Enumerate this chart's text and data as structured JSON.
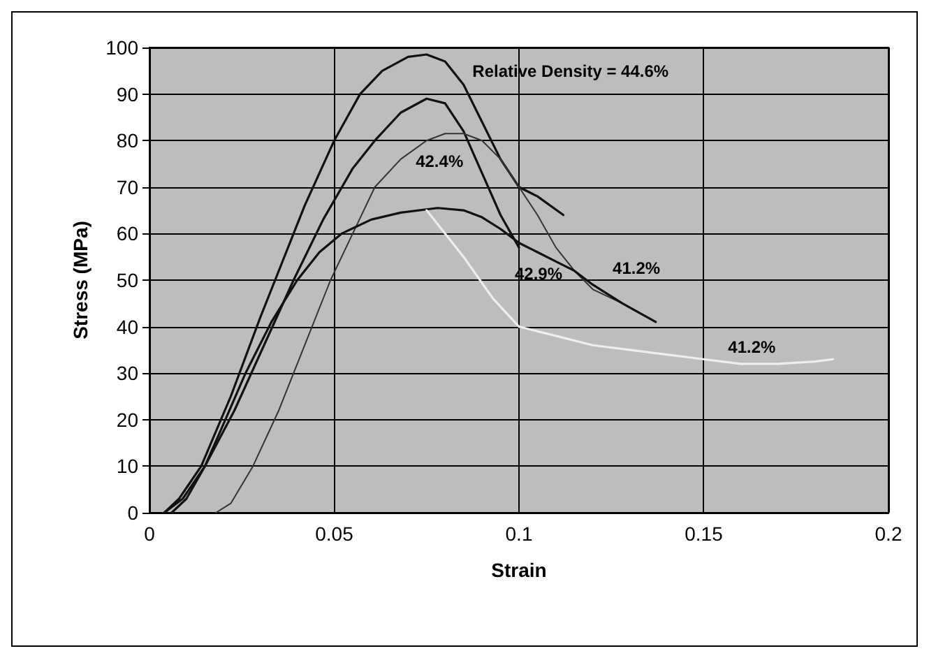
{
  "chart_data": {
    "type": "line",
    "xlabel": "Strain",
    "ylabel": "Stress (MPa)",
    "xlim": [
      0,
      0.2
    ],
    "xticks": [
      0,
      0.05,
      0.1,
      0.15,
      0.2
    ],
    "ylim": [
      0,
      100
    ],
    "yticks": [
      0,
      10,
      20,
      30,
      40,
      50,
      60,
      70,
      80,
      90,
      100
    ],
    "grid": true,
    "marker": "none",
    "line_style": "solid",
    "series": [
      {
        "name": "Relative Density = 44.6%",
        "color": "#111111",
        "x": [
          0.004,
          0.008,
          0.014,
          0.022,
          0.03,
          0.034,
          0.042,
          0.05,
          0.057,
          0.063,
          0.07,
          0.075,
          0.08,
          0.085,
          0.09,
          0.095,
          0.1,
          0.105,
          0.112
        ],
        "values": [
          0,
          3,
          10,
          25,
          42,
          50,
          66,
          80,
          90,
          95,
          98,
          98.5,
          97,
          92,
          84,
          76,
          70,
          68,
          64
        ]
      },
      {
        "name": "42.9%",
        "color": "#111111",
        "x": [
          0.006,
          0.01,
          0.015,
          0.023,
          0.031,
          0.039,
          0.047,
          0.055,
          0.061,
          0.068,
          0.075,
          0.08,
          0.085,
          0.09,
          0.095,
          0.1
        ],
        "values": [
          0,
          3,
          10,
          22,
          36,
          50,
          63,
          74,
          80,
          86,
          89,
          88,
          82,
          73,
          64,
          57
        ]
      },
      {
        "name": "42.4%",
        "color": "#333333",
        "x": [
          0.018,
          0.022,
          0.028,
          0.035,
          0.042,
          0.049,
          0.055,
          0.061,
          0.068,
          0.075,
          0.08,
          0.085,
          0.09,
          0.095,
          0.1,
          0.105,
          0.11,
          0.115,
          0.12,
          0.128,
          0.137
        ],
        "values": [
          0,
          2,
          10,
          22,
          36,
          50,
          60,
          70,
          76,
          80,
          81.5,
          81.5,
          80,
          76,
          70,
          64,
          57,
          52,
          48,
          45,
          41
        ]
      },
      {
        "name": "41.2%",
        "color": "#111111",
        "x": [
          0.004,
          0.009,
          0.015,
          0.02,
          0.026,
          0.033,
          0.04,
          0.046,
          0.052,
          0.06,
          0.068,
          0.078,
          0.085,
          0.09,
          0.095,
          0.1,
          0.105,
          0.11,
          0.115,
          0.12,
          0.128,
          0.137
        ],
        "values": [
          0,
          3,
          10,
          19,
          30,
          41,
          50,
          56,
          60,
          63,
          64.5,
          65.5,
          65,
          63.5,
          61,
          58,
          56,
          54,
          52,
          49,
          45,
          41
        ]
      },
      {
        "name": "41.2%",
        "color": "#eeeeee",
        "x": [
          0.075,
          0.085,
          0.093,
          0.1,
          0.11,
          0.12,
          0.13,
          0.14,
          0.15,
          0.16,
          0.17,
          0.18,
          0.185
        ],
        "values": [
          65,
          55,
          46,
          40,
          38,
          36,
          35,
          34,
          33,
          32,
          32,
          32.5,
          33
        ]
      }
    ]
  }
}
